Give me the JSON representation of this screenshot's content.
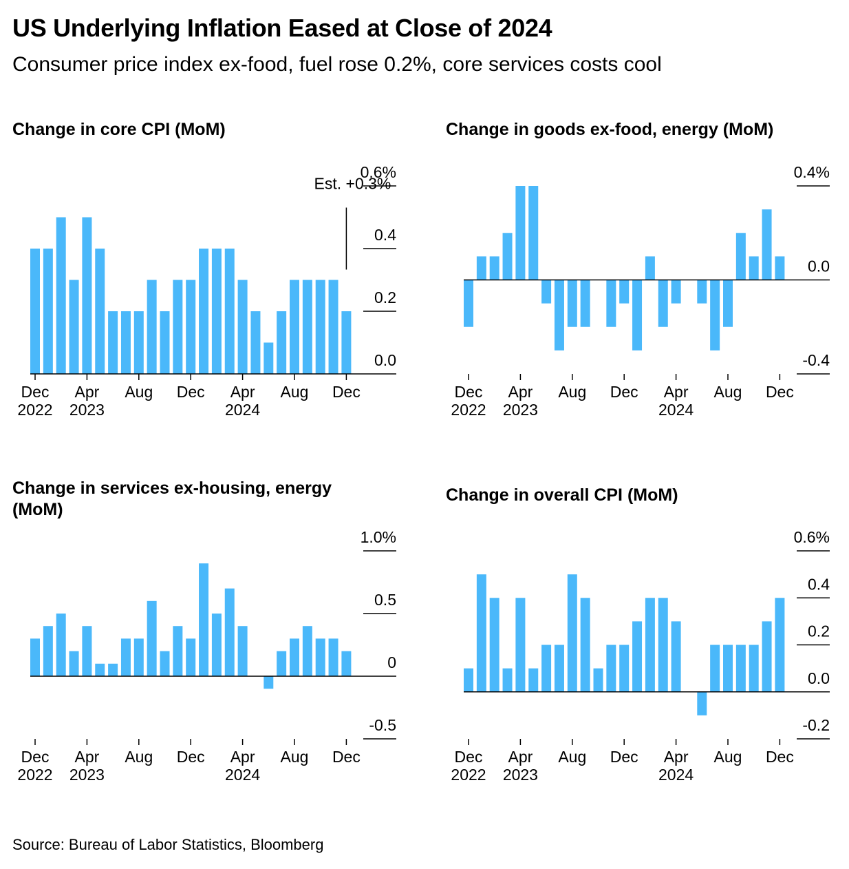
{
  "title": "US Underlying Inflation Eased at Close of 2024",
  "subtitle": "Consumer price index ex-food, fuel rose 0.2%, core services costs cool",
  "source": "Source: Bureau of Labor Statistics, Bloomberg",
  "colors": {
    "bar": "#4AB8FA",
    "axis": "#000000",
    "text": "#000000"
  },
  "chart_data": [
    {
      "type": "bar",
      "title": "Change in core CPI (MoM)",
      "x": [
        "Dec 2022",
        "Jan 2023",
        "Feb 2023",
        "Mar 2023",
        "Apr 2023",
        "May 2023",
        "Jun 2023",
        "Jul 2023",
        "Aug 2023",
        "Sep 2023",
        "Oct 2023",
        "Nov 2023",
        "Dec 2023",
        "Jan 2024",
        "Feb 2024",
        "Mar 2024",
        "Apr 2024",
        "May 2024",
        "Jun 2024",
        "Jul 2024",
        "Aug 2024",
        "Sep 2024",
        "Oct 2024",
        "Nov 2024",
        "Dec 2024"
      ],
      "values": [
        0.4,
        0.4,
        0.5,
        0.3,
        0.5,
        0.4,
        0.2,
        0.2,
        0.2,
        0.3,
        0.2,
        0.3,
        0.3,
        0.4,
        0.4,
        0.4,
        0.3,
        0.2,
        0.1,
        0.2,
        0.3,
        0.3,
        0.3,
        0.3,
        0.2
      ],
      "ylim": [
        0,
        0.6
      ],
      "yticks": [
        {
          "value": 0.6,
          "label": "0.6%"
        },
        {
          "value": 0.4,
          "label": "0.4"
        },
        {
          "value": 0.2,
          "label": "0.2"
        },
        {
          "value": 0.0,
          "label": "0.0"
        }
      ],
      "xticks": [
        {
          "index": 0,
          "label": [
            "Dec",
            "2022"
          ]
        },
        {
          "index": 4,
          "label": [
            "Apr",
            "2023"
          ]
        },
        {
          "index": 8,
          "label": [
            "Aug"
          ]
        },
        {
          "index": 12,
          "label": [
            "Dec"
          ]
        },
        {
          "index": 16,
          "label": [
            "Apr",
            "2024"
          ]
        },
        {
          "index": 20,
          "label": [
            "Aug"
          ]
        },
        {
          "index": 24,
          "label": [
            "Dec"
          ]
        }
      ],
      "annotation": {
        "text": "Est. +0.3%",
        "index": 24,
        "value": 0.3
      },
      "grid": false
    },
    {
      "type": "bar",
      "title": "Change in goods ex-food, energy (MoM)",
      "x": [
        "Dec 2022",
        "Jan 2023",
        "Feb 2023",
        "Mar 2023",
        "Apr 2023",
        "May 2023",
        "Jun 2023",
        "Jul 2023",
        "Aug 2023",
        "Sep 2023",
        "Oct 2023",
        "Nov 2023",
        "Dec 2023",
        "Jan 2024",
        "Feb 2024",
        "Mar 2024",
        "Apr 2024",
        "May 2024",
        "Jun 2024",
        "Jul 2024",
        "Aug 2024",
        "Sep 2024",
        "Oct 2024",
        "Nov 2024",
        "Dec 2024"
      ],
      "values": [
        -0.2,
        0.1,
        0.1,
        0.2,
        0.4,
        0.4,
        -0.1,
        -0.3,
        -0.2,
        -0.2,
        0.0,
        -0.2,
        -0.1,
        -0.3,
        0.1,
        -0.2,
        -0.1,
        0.0,
        -0.1,
        -0.3,
        -0.2,
        0.2,
        0.1,
        0.3,
        0.1
      ],
      "ylim": [
        -0.4,
        0.4
      ],
      "yticks": [
        {
          "value": 0.4,
          "label": "0.4%"
        },
        {
          "value": 0.0,
          "label": "0.0"
        },
        {
          "value": -0.4,
          "label": "-0.4"
        }
      ],
      "xticks": [
        {
          "index": 0,
          "label": [
            "Dec",
            "2022"
          ]
        },
        {
          "index": 4,
          "label": [
            "Apr",
            "2023"
          ]
        },
        {
          "index": 8,
          "label": [
            "Aug"
          ]
        },
        {
          "index": 12,
          "label": [
            "Dec"
          ]
        },
        {
          "index": 16,
          "label": [
            "Apr",
            "2024"
          ]
        },
        {
          "index": 20,
          "label": [
            "Aug"
          ]
        },
        {
          "index": 24,
          "label": [
            "Dec"
          ]
        }
      ],
      "grid": false
    },
    {
      "type": "bar",
      "title": "Change in services ex-housing, energy (MoM)",
      "x": [
        "Dec 2022",
        "Jan 2023",
        "Feb 2023",
        "Mar 2023",
        "Apr 2023",
        "May 2023",
        "Jun 2023",
        "Jul 2023",
        "Aug 2023",
        "Sep 2023",
        "Oct 2023",
        "Nov 2023",
        "Dec 2023",
        "Jan 2024",
        "Feb 2024",
        "Mar 2024",
        "Apr 2024",
        "May 2024",
        "Jun 2024",
        "Jul 2024",
        "Aug 2024",
        "Sep 2024",
        "Oct 2024",
        "Nov 2024",
        "Dec 2024"
      ],
      "values": [
        0.3,
        0.4,
        0.5,
        0.2,
        0.4,
        0.1,
        0.1,
        0.3,
        0.3,
        0.6,
        0.2,
        0.4,
        0.3,
        0.9,
        0.5,
        0.7,
        0.4,
        0.0,
        -0.1,
        0.2,
        0.3,
        0.4,
        0.3,
        0.3,
        0.2
      ],
      "ylim": [
        -0.5,
        1.0
      ],
      "yticks": [
        {
          "value": 1.0,
          "label": "1.0%"
        },
        {
          "value": 0.5,
          "label": "0.5"
        },
        {
          "value": 0.0,
          "label": "0"
        },
        {
          "value": -0.5,
          "label": "-0.5"
        }
      ],
      "xticks": [
        {
          "index": 0,
          "label": [
            "Dec",
            "2022"
          ]
        },
        {
          "index": 4,
          "label": [
            "Apr",
            "2023"
          ]
        },
        {
          "index": 8,
          "label": [
            "Aug"
          ]
        },
        {
          "index": 12,
          "label": [
            "Dec"
          ]
        },
        {
          "index": 16,
          "label": [
            "Apr",
            "2024"
          ]
        },
        {
          "index": 20,
          "label": [
            "Aug"
          ]
        },
        {
          "index": 24,
          "label": [
            "Dec"
          ]
        }
      ],
      "grid": false
    },
    {
      "type": "bar",
      "title": "Change in overall CPI (MoM)",
      "x": [
        "Dec 2022",
        "Jan 2023",
        "Feb 2023",
        "Mar 2023",
        "Apr 2023",
        "May 2023",
        "Jun 2023",
        "Jul 2023",
        "Aug 2023",
        "Sep 2023",
        "Oct 2023",
        "Nov 2023",
        "Dec 2023",
        "Jan 2024",
        "Feb 2024",
        "Mar 2024",
        "Apr 2024",
        "May 2024",
        "Jun 2024",
        "Jul 2024",
        "Aug 2024",
        "Sep 2024",
        "Oct 2024",
        "Nov 2024",
        "Dec 2024"
      ],
      "values": [
        0.1,
        0.5,
        0.4,
        0.1,
        0.4,
        0.1,
        0.2,
        0.2,
        0.5,
        0.4,
        0.1,
        0.2,
        0.2,
        0.3,
        0.4,
        0.4,
        0.3,
        0.0,
        -0.1,
        0.2,
        0.2,
        0.2,
        0.2,
        0.3,
        0.4
      ],
      "ylim": [
        -0.2,
        0.6
      ],
      "yticks": [
        {
          "value": 0.6,
          "label": "0.6%"
        },
        {
          "value": 0.4,
          "label": "0.4"
        },
        {
          "value": 0.2,
          "label": "0.2"
        },
        {
          "value": 0.0,
          "label": "0.0"
        },
        {
          "value": -0.2,
          "label": "-0.2"
        }
      ],
      "xticks": [
        {
          "index": 0,
          "label": [
            "Dec",
            "2022"
          ]
        },
        {
          "index": 4,
          "label": [
            "Apr",
            "2023"
          ]
        },
        {
          "index": 8,
          "label": [
            "Aug"
          ]
        },
        {
          "index": 12,
          "label": [
            "Dec"
          ]
        },
        {
          "index": 16,
          "label": [
            "Apr",
            "2024"
          ]
        },
        {
          "index": 20,
          "label": [
            "Aug"
          ]
        },
        {
          "index": 24,
          "label": [
            "Dec"
          ]
        }
      ],
      "grid": false
    }
  ]
}
